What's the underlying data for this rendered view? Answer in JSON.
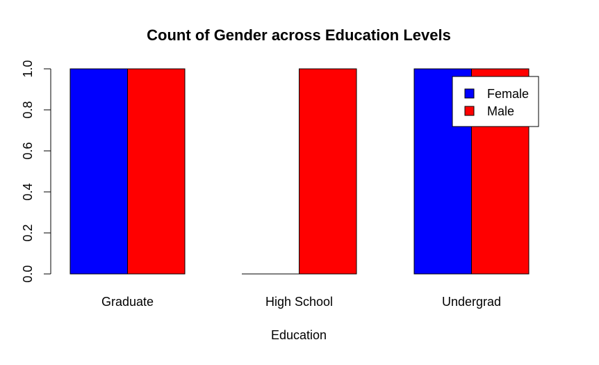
{
  "chart_data": {
    "type": "bar",
    "title": "Count of Gender across Education Levels",
    "xlabel": "Education",
    "ylabel": "",
    "categories": [
      "Graduate",
      "High School",
      "Undergrad"
    ],
    "series": [
      {
        "name": "Female",
        "values": [
          1,
          0,
          1
        ],
        "color": "#0000FF"
      },
      {
        "name": "Male",
        "values": [
          1,
          1,
          1
        ],
        "color": "#FF0000"
      }
    ],
    "ylim": [
      0,
      1
    ],
    "yticks": [
      "0.0",
      "0.2",
      "0.4",
      "0.6",
      "0.8",
      "1.0"
    ],
    "grid": false,
    "legend_position": "top-right"
  }
}
